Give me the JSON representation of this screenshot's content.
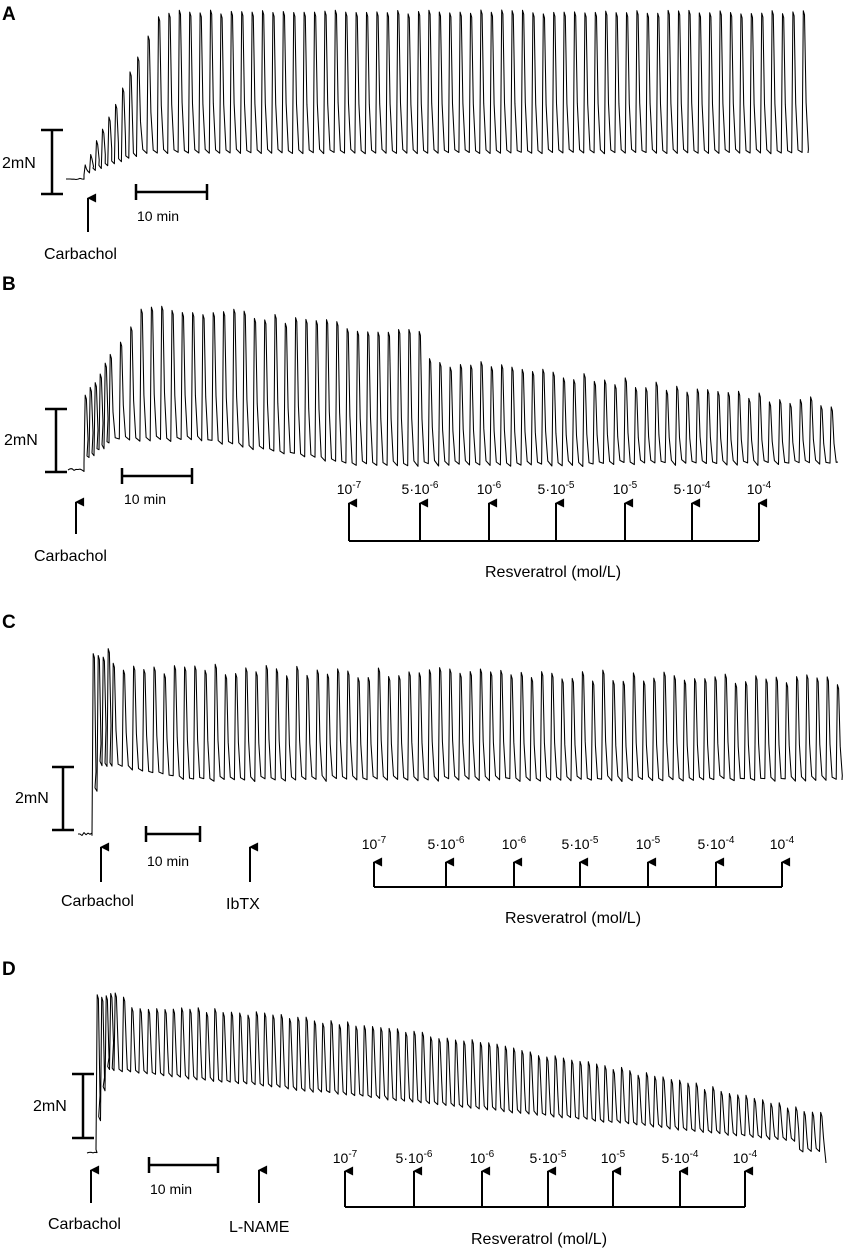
{
  "panels": [
    {
      "id": "A",
      "scale_bar_label": "2mN",
      "time_bar_label": "10 min",
      "agonist": "Carbachol",
      "resveratrol": null
    },
    {
      "id": "B",
      "scale_bar_label": "2mN",
      "time_bar_label": "10 min",
      "agonist": "Carbachol",
      "resveratrol": {
        "label": "Resveratrol (mol/L)",
        "concentrations": [
          {
            "base": "10",
            "exp": "-7"
          },
          {
            "base": "5·10",
            "exp": "-6"
          },
          {
            "base": "10",
            "exp": "-6"
          },
          {
            "base": "5·10",
            "exp": "-5"
          },
          {
            "base": "10",
            "exp": "-5"
          },
          {
            "base": "5·10",
            "exp": "-4"
          },
          {
            "base": "10",
            "exp": "-4"
          }
        ]
      }
    },
    {
      "id": "C",
      "scale_bar_label": "2mN",
      "time_bar_label": "10 min",
      "agonist": "Carbachol",
      "blocker": "IbTX",
      "resveratrol": {
        "label": "Resveratrol (mol/L)",
        "concentrations": [
          {
            "base": "10",
            "exp": "-7"
          },
          {
            "base": "5·10",
            "exp": "-6"
          },
          {
            "base": "10",
            "exp": "-6"
          },
          {
            "base": "5·10",
            "exp": "-5"
          },
          {
            "base": "10",
            "exp": "-5"
          },
          {
            "base": "5·10",
            "exp": "-4"
          },
          {
            "base": "10",
            "exp": "-4"
          }
        ]
      }
    },
    {
      "id": "D",
      "scale_bar_label": "2mN",
      "time_bar_label": "10 min",
      "agonist": "Carbachol",
      "blocker": "L-NAME",
      "resveratrol": {
        "label": "Resveratrol (mol/L)",
        "concentrations": [
          {
            "base": "10",
            "exp": "-7"
          },
          {
            "base": "5·10",
            "exp": "-6"
          },
          {
            "base": "10",
            "exp": "-6"
          },
          {
            "base": "5·10",
            "exp": "-5"
          },
          {
            "base": "10",
            "exp": "-5"
          },
          {
            "base": "5·10",
            "exp": "-4"
          },
          {
            "base": "10",
            "exp": "-4"
          }
        ]
      }
    }
  ]
}
